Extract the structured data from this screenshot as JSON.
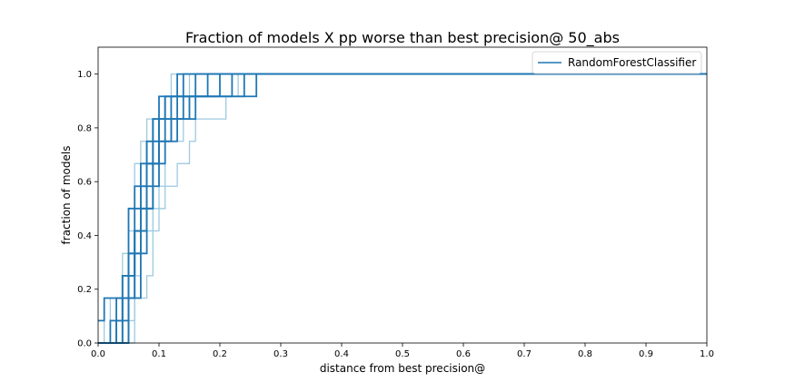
{
  "chart_data": {
    "type": "line",
    "title": "Fraction of models X pp worse than best precision@ 50_abs",
    "xlabel": "distance from best precision@",
    "ylabel": "fraction of models",
    "xlim": [
      0,
      1
    ],
    "ylim": [
      0,
      1.1
    ],
    "xticks": [
      "0.0",
      "0.1",
      "0.2",
      "0.3",
      "0.4",
      "0.5",
      "0.6",
      "0.7",
      "0.8",
      "0.9",
      "1.0"
    ],
    "yticks": [
      "0.0",
      "0.2",
      "0.4",
      "0.6",
      "0.8",
      "1.0"
    ],
    "grid": false,
    "legend_position": "top-right",
    "legend": [
      "RandomForestClassifier"
    ],
    "colors": {
      "dark": "#1f77b4",
      "light": "#9ecae1"
    },
    "series": [
      {
        "style": "dark",
        "x": [
          0.0,
          0.05,
          0.05,
          0.06,
          0.06,
          0.07,
          0.07,
          0.08,
          0.08,
          0.09,
          0.09,
          0.1,
          0.1,
          0.11,
          0.11,
          0.13,
          0.13,
          1.0
        ],
        "y": [
          0.0,
          0.0,
          0.167,
          0.167,
          0.333,
          0.333,
          0.5,
          0.5,
          0.667,
          0.667,
          0.75,
          0.75,
          0.833,
          0.833,
          0.917,
          0.917,
          1.0,
          1.0
        ]
      },
      {
        "style": "dark",
        "x": [
          0.0,
          0.04,
          0.04,
          0.05,
          0.05,
          0.06,
          0.06,
          0.07,
          0.07,
          0.08,
          0.08,
          0.09,
          0.09,
          0.1,
          0.1,
          0.14,
          0.14,
          1.0
        ],
        "y": [
          0.0,
          0.0,
          0.083,
          0.083,
          0.25,
          0.25,
          0.417,
          0.417,
          0.583,
          0.583,
          0.75,
          0.75,
          0.833,
          0.833,
          0.917,
          0.917,
          1.0,
          1.0
        ]
      },
      {
        "style": "dark",
        "x": [
          0.0,
          0.03,
          0.03,
          0.04,
          0.04,
          0.05,
          0.05,
          0.06,
          0.06,
          0.08,
          0.08,
          0.09,
          0.09,
          0.11,
          0.11,
          0.16,
          0.16,
          1.0
        ],
        "y": [
          0.0,
          0.0,
          0.083,
          0.083,
          0.25,
          0.25,
          0.5,
          0.5,
          0.583,
          0.583,
          0.75,
          0.75,
          0.833,
          0.833,
          0.917,
          0.917,
          1.0,
          1.0
        ]
      },
      {
        "style": "dark",
        "x": [
          0.0,
          0.01,
          0.01,
          0.05,
          0.05,
          0.06,
          0.06,
          0.07,
          0.07,
          0.09,
          0.09,
          0.1,
          0.1,
          0.12,
          0.12,
          0.18,
          0.18,
          1.0
        ],
        "y": [
          0.083,
          0.083,
          0.167,
          0.167,
          0.333,
          0.333,
          0.5,
          0.5,
          0.667,
          0.667,
          0.75,
          0.75,
          0.833,
          0.833,
          0.917,
          0.917,
          1.0,
          1.0
        ]
      },
      {
        "style": "dark",
        "x": [
          0.0,
          0.02,
          0.02,
          0.04,
          0.04,
          0.06,
          0.06,
          0.08,
          0.08,
          0.1,
          0.1,
          0.12,
          0.12,
          0.14,
          0.14,
          0.2,
          0.2,
          1.0
        ],
        "y": [
          0.0,
          0.0,
          0.083,
          0.083,
          0.25,
          0.25,
          0.417,
          0.417,
          0.667,
          0.667,
          0.75,
          0.75,
          0.833,
          0.833,
          0.917,
          0.917,
          1.0,
          1.0
        ]
      },
      {
        "style": "dark",
        "x": [
          0.0,
          0.03,
          0.03,
          0.05,
          0.05,
          0.07,
          0.07,
          0.09,
          0.09,
          0.1,
          0.1,
          0.11,
          0.11,
          0.13,
          0.13,
          0.22,
          0.22,
          1.0
        ],
        "y": [
          0.0,
          0.0,
          0.167,
          0.167,
          0.333,
          0.333,
          0.5,
          0.5,
          0.667,
          0.667,
          0.75,
          0.75,
          0.833,
          0.833,
          0.917,
          0.917,
          1.0,
          1.0
        ]
      },
      {
        "style": "dark",
        "x": [
          0.0,
          0.04,
          0.04,
          0.06,
          0.06,
          0.08,
          0.08,
          0.09,
          0.09,
          0.1,
          0.1,
          0.12,
          0.12,
          0.15,
          0.15,
          0.24,
          0.24,
          1.0
        ],
        "y": [
          0.0,
          0.0,
          0.167,
          0.167,
          0.417,
          0.417,
          0.5,
          0.5,
          0.667,
          0.667,
          0.75,
          0.75,
          0.833,
          0.833,
          0.917,
          0.917,
          1.0,
          1.0
        ]
      },
      {
        "style": "dark",
        "x": [
          0.0,
          0.05,
          0.05,
          0.07,
          0.07,
          0.08,
          0.08,
          0.1,
          0.1,
          0.11,
          0.11,
          0.13,
          0.13,
          0.16,
          0.16,
          0.26,
          0.26,
          1.0
        ],
        "y": [
          0.0,
          0.0,
          0.167,
          0.167,
          0.333,
          0.333,
          0.583,
          0.583,
          0.667,
          0.667,
          0.75,
          0.75,
          0.833,
          0.833,
          0.917,
          0.917,
          1.0,
          1.0
        ]
      },
      {
        "style": "light",
        "x": [
          0.0,
          0.02,
          0.02,
          0.04,
          0.04,
          0.05,
          0.05,
          0.06,
          0.06,
          0.07,
          0.07,
          0.08,
          0.08,
          0.11,
          0.11,
          0.12,
          0.12,
          1.0
        ],
        "y": [
          0.0,
          0.0,
          0.167,
          0.167,
          0.333,
          0.333,
          0.5,
          0.5,
          0.667,
          0.667,
          0.75,
          0.75,
          0.833,
          0.833,
          0.917,
          0.917,
          1.0,
          1.0
        ]
      },
      {
        "style": "light",
        "x": [
          0.0,
          0.06,
          0.06,
          0.08,
          0.08,
          0.09,
          0.09,
          0.1,
          0.1,
          0.11,
          0.11,
          0.13,
          0.13,
          0.15,
          0.15,
          0.16,
          0.16,
          1.0
        ],
        "y": [
          0.0,
          0.0,
          0.167,
          0.167,
          0.25,
          0.25,
          0.417,
          0.417,
          0.5,
          0.5,
          0.583,
          0.583,
          0.667,
          0.667,
          0.75,
          0.75,
          1.0,
          1.0
        ]
      },
      {
        "style": "light",
        "x": [
          0.0,
          0.03,
          0.03,
          0.05,
          0.05,
          0.06,
          0.06,
          0.07,
          0.07,
          0.09,
          0.09,
          0.14,
          0.14,
          0.21,
          0.21,
          0.23,
          0.23,
          1.0
        ],
        "y": [
          0.0,
          0.0,
          0.167,
          0.167,
          0.333,
          0.333,
          0.583,
          0.583,
          0.667,
          0.667,
          0.75,
          0.75,
          0.833,
          0.833,
          0.917,
          0.917,
          1.0,
          1.0
        ]
      },
      {
        "style": "light",
        "x": [
          0.0,
          0.01,
          0.01,
          0.04,
          0.04,
          0.05,
          0.05,
          0.06,
          0.06,
          0.08,
          0.08,
          0.1,
          0.1,
          0.11,
          0.11,
          0.14,
          0.14,
          1.0
        ],
        "y": [
          0.0,
          0.0,
          0.167,
          0.167,
          0.25,
          0.25,
          0.417,
          0.417,
          0.583,
          0.583,
          0.667,
          0.667,
          0.833,
          0.833,
          0.917,
          0.917,
          1.0,
          1.0
        ]
      },
      {
        "style": "light",
        "x": [
          0.0,
          0.04,
          0.04,
          0.06,
          0.06,
          0.07,
          0.07,
          0.09,
          0.09,
          0.1,
          0.1,
          0.11,
          0.11,
          0.13,
          0.13,
          0.15,
          0.15,
          1.0
        ],
        "y": [
          0.0,
          0.0,
          0.083,
          0.083,
          0.25,
          0.25,
          0.417,
          0.417,
          0.5,
          0.5,
          0.583,
          0.583,
          0.75,
          0.75,
          0.833,
          0.833,
          1.0,
          1.0
        ]
      }
    ]
  }
}
